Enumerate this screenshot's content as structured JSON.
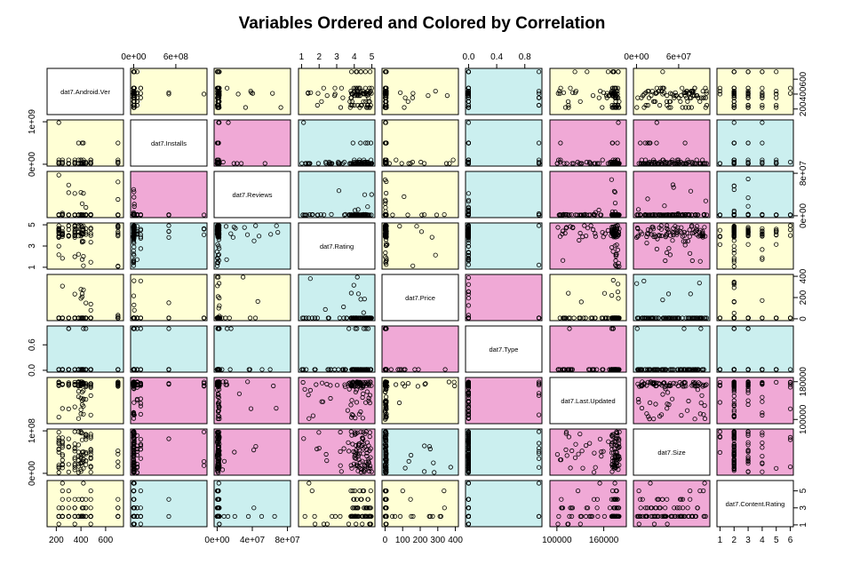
{
  "colors": {
    "low": "#FFFFD5",
    "medium": "#CBEFEF",
    "high": "#F0A9D6",
    "diagonal": "#FFFFFF",
    "stroke": "#000000"
  },
  "chart_data": {
    "type": "scatter-matrix",
    "title": "Variables Ordered and Colored by Correlation",
    "variables": [
      "dat7.Android.Ver",
      "dat7.Installs",
      "dat7.Reviews",
      "dat7.Rating",
      "dat7.Price",
      "dat7.Type",
      "dat7.Last.Updated",
      "dat7.Size",
      "dat7.Content.Rating"
    ],
    "ranges": [
      [
        150,
        720
      ],
      [
        0,
        1000000000
      ],
      [
        0,
        80000000
      ],
      [
        1,
        5
      ],
      [
        0,
        400
      ],
      [
        0,
        1
      ],
      [
        95000,
        185000
      ],
      [
        0,
        100000000
      ],
      [
        1,
        6
      ]
    ],
    "top_ticks": [
      null,
      {
        "values": [
          0,
          600000000
        ],
        "labels": [
          "0e+00",
          "6e+08"
        ]
      },
      null,
      {
        "values": [
          1,
          2,
          3,
          4,
          5
        ],
        "labels": [
          "1",
          "2",
          "3",
          "4",
          "5"
        ]
      },
      null,
      {
        "values": [
          0,
          0.4,
          0.8
        ],
        "labels": [
          "0.0",
          "0.4",
          "0.8"
        ]
      },
      null,
      {
        "values": [
          0,
          60000000
        ],
        "labels": [
          "0e+00",
          "6e+07"
        ]
      },
      null
    ],
    "bottom_ticks": [
      {
        "values": [
          200,
          400,
          600
        ],
        "labels": [
          "200",
          "400",
          "600"
        ]
      },
      null,
      {
        "values": [
          0,
          40000000,
          80000000
        ],
        "labels": [
          "0e+00",
          "4e+07",
          "8e+07"
        ]
      },
      null,
      {
        "values": [
          0,
          100,
          200,
          300,
          400
        ],
        "labels": [
          "0",
          "100",
          "200",
          "300",
          "400"
        ]
      },
      null,
      {
        "values": [
          100000,
          160000
        ],
        "labels": [
          "100000",
          "160000"
        ]
      },
      null,
      {
        "values": [
          1,
          2,
          3,
          4,
          5,
          6
        ],
        "labels": [
          "1",
          "2",
          "3",
          "4",
          "5",
          "6"
        ]
      }
    ],
    "left_ticks": [
      null,
      {
        "values": [
          0,
          1000000000
        ],
        "labels": [
          "0e+00",
          "1e+09"
        ]
      },
      null,
      {
        "values": [
          1,
          3,
          5
        ],
        "labels": [
          "1",
          "3",
          "5"
        ]
      },
      null,
      {
        "values": [
          0,
          0.6
        ],
        "labels": [
          "0.0",
          "0.6"
        ]
      },
      null,
      {
        "values": [
          0,
          100000000
        ],
        "labels": [
          "0e+00",
          "1e+08"
        ]
      },
      null
    ],
    "right_ticks": [
      {
        "values": [
          200,
          400,
          600
        ],
        "labels": [
          "200",
          "400",
          "600"
        ]
      },
      null,
      {
        "values": [
          0,
          80000000
        ],
        "labels": [
          "0e+00",
          "8e+07"
        ]
      },
      null,
      {
        "values": [
          0,
          200,
          400
        ],
        "labels": [
          "0",
          "200",
          "400"
        ]
      },
      null,
      {
        "values": [
          100000,
          180000
        ],
        "labels": [
          "100000",
          "180000"
        ]
      },
      null,
      {
        "values": [
          1,
          3,
          5
        ],
        "labels": [
          "1",
          "3",
          "5"
        ]
      }
    ],
    "panel_colors": [
      [
        "diagonal",
        "low",
        "low",
        "low",
        "low",
        "medium",
        "low",
        "low",
        "low"
      ],
      [
        "low",
        "diagonal",
        "high",
        "medium",
        "low",
        "medium",
        "high",
        "high",
        "medium"
      ],
      [
        "low",
        "high",
        "diagonal",
        "medium",
        "low",
        "medium",
        "high",
        "high",
        "medium"
      ],
      [
        "low",
        "medium",
        "medium",
        "diagonal",
        "low",
        "medium",
        "high",
        "high",
        "low"
      ],
      [
        "low",
        "low",
        "low",
        "medium",
        "diagonal",
        "high",
        "low",
        "medium",
        "low"
      ],
      [
        "medium",
        "medium",
        "medium",
        "medium",
        "high",
        "diagonal",
        "high",
        "medium",
        "medium"
      ],
      [
        "low",
        "high",
        "high",
        "high",
        "low",
        "high",
        "diagonal",
        "high",
        "high"
      ],
      [
        "low",
        "high",
        "high",
        "high",
        "medium",
        "medium",
        "high",
        "diagonal",
        "high"
      ],
      [
        "low",
        "medium",
        "medium",
        "low",
        "low",
        "medium",
        "high",
        "high",
        "diagonal"
      ]
    ],
    "legend": "none",
    "grid": false
  }
}
